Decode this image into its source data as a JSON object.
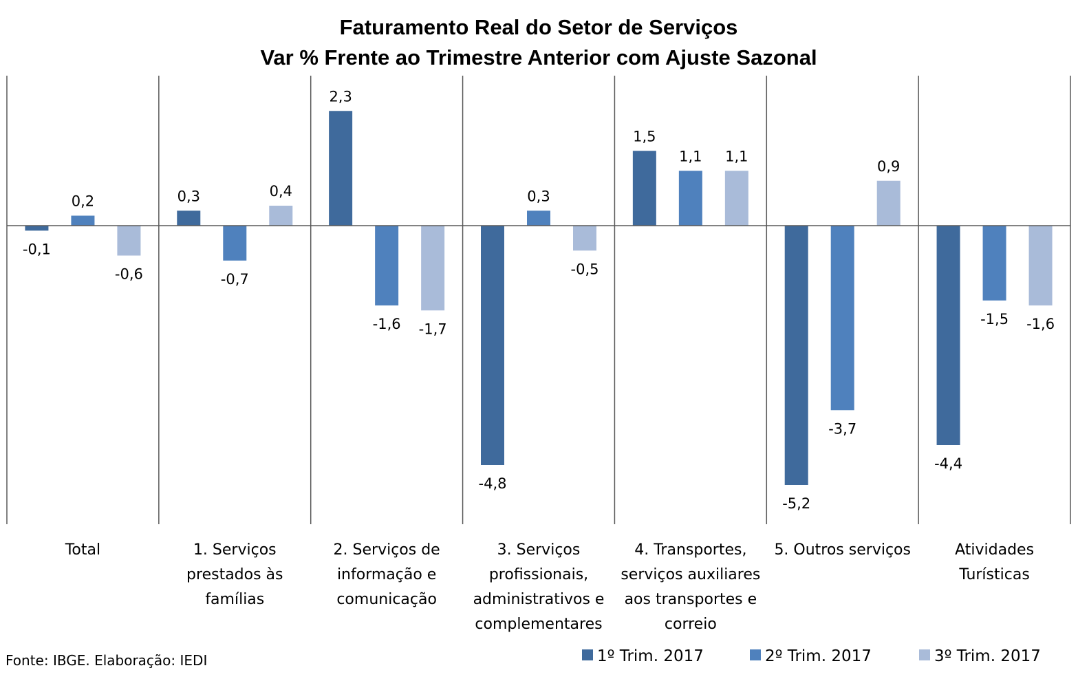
{
  "chart_data": {
    "type": "bar",
    "title_lines": [
      "Faturamento Real do Setor de Serviços",
      "Var % Frente ao Trimestre Anterior com Ajuste Sazonal"
    ],
    "categories": [
      [
        "Total"
      ],
      [
        "1. Serviços",
        "prestados às",
        "famílias"
      ],
      [
        "2. Serviços de",
        "informação e",
        "comunicação"
      ],
      [
        "3. Serviços",
        "profissionais,",
        "administrativos e",
        "complementares"
      ],
      [
        "4. Transportes,",
        "serviços auxiliares",
        "aos transportes e",
        "correio"
      ],
      [
        "5. Outros serviços"
      ],
      [
        "Atividades",
        "Turísticas"
      ]
    ],
    "series": [
      {
        "name": "1º Trim. 2017",
        "color": "#3f6a9c",
        "values": [
          -0.1,
          0.3,
          2.3,
          -4.8,
          1.5,
          -5.2,
          -4.4
        ],
        "labels": [
          "-0,1",
          "0,3",
          "2,3",
          "-4,8",
          "1,5",
          "-5,2",
          "-4,4"
        ]
      },
      {
        "name": "2º Trim. 2017",
        "color": "#4f81bd",
        "values": [
          0.2,
          -0.7,
          -1.6,
          0.3,
          1.1,
          -3.7,
          -1.5
        ],
        "labels": [
          "0,2",
          "-0,7",
          "-1,6",
          "0,3",
          "1,1",
          "-3,7",
          "-1,5"
        ]
      },
      {
        "name": "3º Trim. 2017",
        "color": "#a9bbd9",
        "values": [
          -0.6,
          0.4,
          -1.7,
          -0.5,
          1.1,
          0.9,
          -1.6
        ],
        "labels": [
          "-0,6",
          "0,4",
          "-1,7",
          "-0,5",
          "1,1",
          "0,9",
          "-1,6"
        ]
      }
    ],
    "ylim": [
      -6.0,
      3.0
    ],
    "grid": false,
    "legend_position": "bottom-right",
    "source": "Fonte: IBGE. Elaboração: IEDI"
  }
}
